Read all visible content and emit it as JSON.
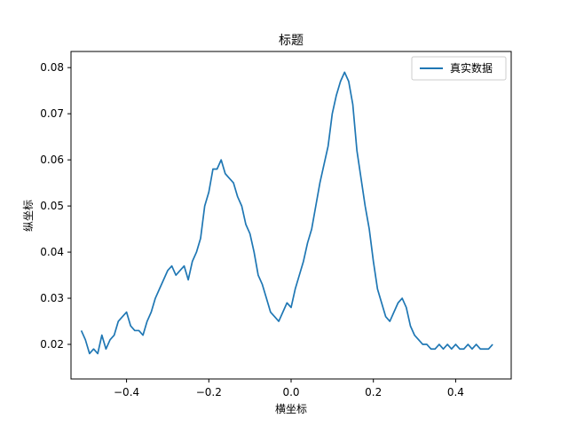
{
  "chart_data": {
    "type": "line",
    "title": "标题",
    "xlabel": "横坐标",
    "ylabel": "纵坐标",
    "xlim": [
      -0.535,
      0.535
    ],
    "ylim": [
      0.0125,
      0.0835
    ],
    "xticks": [
      -0.4,
      -0.2,
      0.0,
      0.2,
      0.4
    ],
    "xtick_labels": [
      "−0.4",
      "−0.2",
      "0.0",
      "0.2",
      "0.4"
    ],
    "yticks": [
      0.02,
      0.03,
      0.04,
      0.05,
      0.06,
      0.07,
      0.08
    ],
    "ytick_labels": [
      "0.02",
      "0.03",
      "0.04",
      "0.05",
      "0.06",
      "0.07",
      "0.08"
    ],
    "grid": false,
    "legend_position": "upper right",
    "series": [
      {
        "name": "真实数据",
        "color": "#1f77b4",
        "x": [
          -0.51,
          -0.5,
          -0.49,
          -0.48,
          -0.47,
          -0.46,
          -0.45,
          -0.44,
          -0.43,
          -0.42,
          -0.41,
          -0.4,
          -0.39,
          -0.38,
          -0.37,
          -0.36,
          -0.35,
          -0.34,
          -0.33,
          -0.32,
          -0.31,
          -0.3,
          -0.29,
          -0.28,
          -0.27,
          -0.26,
          -0.25,
          -0.24,
          -0.23,
          -0.22,
          -0.21,
          -0.2,
          -0.19,
          -0.18,
          -0.17,
          -0.16,
          -0.15,
          -0.14,
          -0.13,
          -0.12,
          -0.11,
          -0.1,
          -0.09,
          -0.08,
          -0.07,
          -0.06,
          -0.05,
          -0.04,
          -0.03,
          -0.02,
          -0.01,
          0.0,
          0.01,
          0.02,
          0.03,
          0.04,
          0.05,
          0.06,
          0.07,
          0.08,
          0.09,
          0.1,
          0.11,
          0.12,
          0.13,
          0.14,
          0.15,
          0.16,
          0.17,
          0.18,
          0.19,
          0.2,
          0.21,
          0.22,
          0.23,
          0.24,
          0.25,
          0.26,
          0.27,
          0.28,
          0.29,
          0.3,
          0.31,
          0.32,
          0.33,
          0.34,
          0.35,
          0.36,
          0.37,
          0.38,
          0.39,
          0.4,
          0.41,
          0.42,
          0.43,
          0.44,
          0.45,
          0.46,
          0.47,
          0.48,
          0.49
        ],
        "y": [
          0.023,
          0.021,
          0.018,
          0.019,
          0.018,
          0.022,
          0.019,
          0.021,
          0.022,
          0.025,
          0.026,
          0.027,
          0.024,
          0.023,
          0.023,
          0.022,
          0.025,
          0.027,
          0.03,
          0.032,
          0.034,
          0.036,
          0.037,
          0.035,
          0.036,
          0.037,
          0.034,
          0.038,
          0.04,
          0.043,
          0.05,
          0.053,
          0.058,
          0.058,
          0.06,
          0.057,
          0.056,
          0.055,
          0.052,
          0.05,
          0.046,
          0.044,
          0.04,
          0.035,
          0.033,
          0.03,
          0.027,
          0.026,
          0.025,
          0.027,
          0.029,
          0.028,
          0.032,
          0.035,
          0.038,
          0.042,
          0.045,
          0.05,
          0.055,
          0.059,
          0.063,
          0.07,
          0.074,
          0.077,
          0.079,
          0.077,
          0.072,
          0.062,
          0.056,
          0.05,
          0.045,
          0.038,
          0.032,
          0.029,
          0.026,
          0.025,
          0.027,
          0.029,
          0.03,
          0.028,
          0.024,
          0.022,
          0.021,
          0.02,
          0.02,
          0.019,
          0.019,
          0.02,
          0.019,
          0.02,
          0.019,
          0.02,
          0.019,
          0.019,
          0.02,
          0.019,
          0.02,
          0.019,
          0.019,
          0.019,
          0.02
        ]
      }
    ]
  }
}
